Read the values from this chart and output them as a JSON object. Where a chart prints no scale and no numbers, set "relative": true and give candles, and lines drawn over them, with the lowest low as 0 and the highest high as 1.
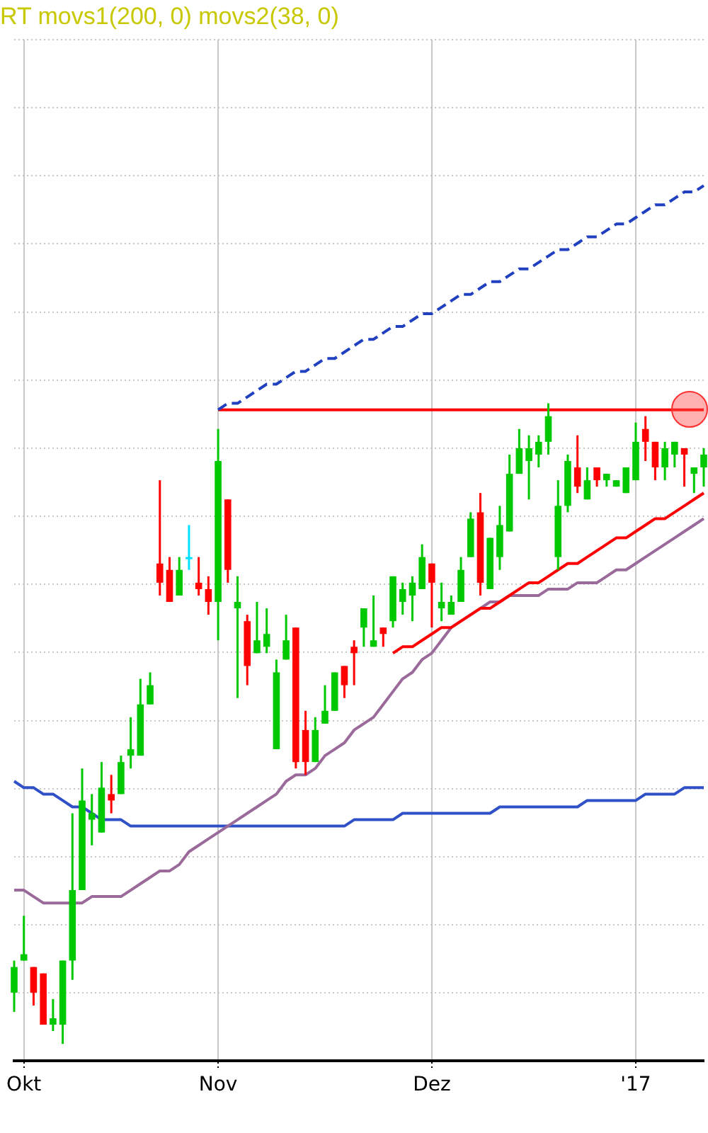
{
  "chart_data": {
    "type": "candlestick",
    "title": "RT movs1(200, 0) movs2(38, 0)",
    "relative": true,
    "grid": true,
    "legend": false,
    "marker": "none",
    "categories": [
      null,
      "Okt",
      null,
      null,
      null,
      null,
      null,
      null,
      null,
      null,
      null,
      null,
      null,
      null,
      null,
      null,
      null,
      null,
      null,
      null,
      null,
      "Nov",
      null,
      null,
      null,
      null,
      null,
      null,
      null,
      null,
      null,
      null,
      null,
      null,
      null,
      null,
      null,
      null,
      null,
      null,
      null,
      null,
      null,
      "Dez",
      null,
      null,
      null,
      null,
      null,
      null,
      null,
      null,
      null,
      null,
      null,
      null,
      null,
      null,
      null,
      null,
      null,
      null,
      null,
      null,
      "'17",
      null,
      null,
      null,
      null,
      null,
      null,
      null
    ],
    "ohlc": [
      [
        0.08,
        0.13,
        0.05,
        0.12
      ],
      [
        0.13,
        0.2,
        0.13,
        0.14
      ],
      [
        0.12,
        0.12,
        0.06,
        0.08
      ],
      [
        0.11,
        0.11,
        0.03,
        0.03
      ],
      [
        0.03,
        0.07,
        0.02,
        0.04
      ],
      [
        0.03,
        0.13,
        0,
        0.13
      ],
      [
        0.13,
        0.36,
        0.1,
        0.24
      ],
      [
        0.24,
        0.43,
        0.24,
        0.38
      ],
      [
        0.35,
        0.39,
        0.31,
        0.36
      ],
      [
        0.33,
        0.44,
        0.33,
        0.4
      ],
      [
        0.39,
        0.42,
        0.36,
        0.38
      ],
      [
        0.39,
        0.45,
        0.39,
        0.44
      ],
      [
        0.45,
        0.51,
        0.43,
        0.46
      ],
      [
        0.45,
        0.57,
        0.45,
        0.53
      ],
      [
        0.53,
        0.58,
        0.53,
        0.56
      ],
      [
        0.75,
        0.88,
        0.7,
        0.72
      ],
      [
        0.74,
        0.76,
        0.69,
        0.69
      ],
      [
        0.7,
        0.76,
        0.7,
        0.74
      ],
      [
        0.76,
        0.81,
        0.74,
        0.76
      ],
      [
        0.72,
        0.76,
        0.7,
        0.71
      ],
      [
        0.71,
        0.73,
        0.67,
        0.69
      ],
      [
        0.69,
        0.96,
        0.63,
        0.91
      ],
      [
        0.85,
        0.85,
        0.72,
        0.74
      ],
      [
        0.68,
        0.73,
        0.54,
        0.69
      ],
      [
        0.66,
        0.67,
        0.56,
        0.59
      ],
      [
        0.61,
        0.69,
        0.61,
        0.63
      ],
      [
        0.62,
        0.68,
        0.61,
        0.64
      ],
      [
        0.46,
        0.6,
        0.46,
        0.58
      ],
      [
        0.6,
        0.67,
        0.6,
        0.63
      ],
      [
        0.65,
        0.65,
        0.43,
        0.44
      ],
      [
        0.49,
        0.52,
        0.42,
        0.44
      ],
      [
        0.44,
        0.51,
        0.44,
        0.49
      ],
      [
        0.5,
        0.56,
        0.5,
        0.52
      ],
      [
        0.52,
        0.58,
        0.52,
        0.58
      ],
      [
        0.59,
        0.59,
        0.54,
        0.56
      ],
      [
        0.62,
        0.63,
        0.56,
        0.61
      ],
      [
        0.65,
        0.68,
        0.62,
        0.68
      ],
      [
        0.62,
        0.7,
        0.62,
        0.63
      ],
      [
        0.65,
        0.65,
        0.62,
        0.64
      ],
      [
        0.66,
        0.73,
        0.65,
        0.73
      ],
      [
        0.69,
        0.72,
        0.67,
        0.71
      ],
      [
        0.7,
        0.73,
        0.66,
        0.72
      ],
      [
        0.71,
        0.78,
        0.71,
        0.76
      ],
      [
        0.75,
        0.75,
        0.65,
        0.72
      ],
      [
        0.68,
        0.72,
        0.66,
        0.69
      ],
      [
        0.67,
        0.7,
        0.67,
        0.69
      ],
      [
        0.69,
        0.76,
        0.69,
        0.74
      ],
      [
        0.76,
        0.83,
        0.76,
        0.82
      ],
      [
        0.83,
        0.86,
        0.7,
        0.72
      ],
      [
        0.71,
        0.79,
        0.71,
        0.79
      ],
      [
        0.76,
        0.84,
        0.74,
        0.81
      ],
      [
        0.8,
        0.92,
        0.8,
        0.89
      ],
      [
        0.89,
        0.96,
        0.89,
        0.93
      ],
      [
        0.91,
        0.95,
        0.85,
        0.93
      ],
      [
        0.92,
        0.95,
        0.9,
        0.94
      ],
      [
        0.94,
        1,
        0.92,
        0.98
      ],
      [
        0.76,
        0.88,
        0.74,
        0.84
      ],
      [
        0.84,
        0.92,
        0.83,
        0.91
      ],
      [
        0.9,
        0.95,
        0.86,
        0.87
      ],
      [
        0.85,
        0.9,
        0.85,
        0.88
      ],
      [
        0.9,
        0.9,
        0.87,
        0.88
      ],
      [
        0.88,
        0.89,
        0.87,
        0.89
      ],
      [
        0.87,
        0.88,
        0.87,
        0.88
      ],
      [
        0.86,
        0.9,
        0.86,
        0.9
      ],
      [
        0.88,
        0.97,
        0.88,
        0.94
      ],
      [
        0.96,
        0.98,
        0.91,
        0.94
      ],
      [
        0.94,
        0.94,
        0.88,
        0.9
      ],
      [
        0.9,
        0.94,
        0.88,
        0.93
      ],
      [
        0.92,
        0.94,
        0.9,
        0.94
      ],
      [
        0.93,
        0.93,
        0.87,
        0.92
      ],
      [
        0.89,
        0.9,
        0.86,
        0.9
      ],
      [
        0.9,
        0.93,
        0.87,
        0.92
      ]
    ],
    "colors": [
      "#00c800",
      "#00c800",
      "#ff0000",
      "#ff0000",
      "#00c800",
      "#00c800",
      "#00c800",
      "#00c800",
      "#00c800",
      "#00c800",
      "#ff0000",
      "#00c800",
      "#00c800",
      "#00c800",
      "#00c800",
      "#ff0000",
      "#ff0000",
      "#00c800",
      "#00e0ff",
      "#ff0000",
      "#ff0000",
      "#00c800",
      "#ff0000",
      "#00c800",
      "#ff0000",
      "#00c800",
      "#00c800",
      "#00c800",
      "#00c800",
      "#ff0000",
      "#ff0000",
      "#00c800",
      "#00c800",
      "#00c800",
      "#ff0000",
      "#ff0000",
      "#00c800",
      "#00c800",
      "#ff0000",
      "#00c800",
      "#00c800",
      "#00c800",
      "#00c800",
      "#ff0000",
      "#00c800",
      "#00c800",
      "#00c800",
      "#00c800",
      "#ff0000",
      "#00c800",
      "#00c800",
      "#00c800",
      "#00c800",
      "#00c800",
      "#00c800",
      "#00c800",
      "#00c800",
      "#00c800",
      "#ff0000",
      "#00c800",
      "#ff0000",
      "#00c800",
      "#00c800",
      "#00c800",
      "#00c800",
      "#ff0000",
      "#ff0000",
      "#00c800",
      "#00c800",
      "#ff0000",
      "#00c800",
      "#00c800"
    ],
    "series": [
      {
        "type": "line",
        "color": "#3050c8",
        "values": [
          0.41,
          0.4,
          0.4,
          0.39,
          0.39,
          0.38,
          0.37,
          0.37,
          0.36,
          0.35,
          0.35,
          0.35,
          0.34,
          0.34,
          0.34,
          0.34,
          0.34,
          0.34,
          0.34,
          0.34,
          0.34,
          0.34,
          0.34,
          0.34,
          0.34,
          0.34,
          0.34,
          0.34,
          0.34,
          0.34,
          0.34,
          0.34,
          0.34,
          0.34,
          0.34,
          0.35,
          0.35,
          0.35,
          0.35,
          0.35,
          0.36,
          0.36,
          0.36,
          0.36,
          0.36,
          0.36,
          0.36,
          0.36,
          0.36,
          0.36,
          0.37,
          0.37,
          0.37,
          0.37,
          0.37,
          0.37,
          0.37,
          0.37,
          0.37,
          0.38,
          0.38,
          0.38,
          0.38,
          0.38,
          0.38,
          0.39,
          0.39,
          0.39,
          0.39,
          0.4,
          0.4,
          0.4
        ]
      },
      {
        "type": "line",
        "color": "#9a6a9a",
        "values": [
          0.24,
          0.24,
          0.23,
          0.22,
          0.22,
          0.22,
          0.22,
          0.22,
          0.23,
          0.23,
          0.23,
          0.23,
          0.24,
          0.25,
          0.26,
          0.27,
          0.27,
          0.28,
          0.3,
          0.31,
          0.32,
          0.33,
          0.34,
          0.35,
          0.36,
          0.37,
          0.38,
          0.39,
          0.41,
          0.42,
          0.42,
          0.43,
          0.45,
          0.46,
          0.47,
          0.49,
          0.5,
          0.51,
          0.53,
          0.55,
          0.57,
          0.58,
          0.6,
          0.61,
          0.63,
          0.65,
          0.66,
          0.67,
          0.68,
          0.69,
          0.69,
          0.7,
          0.7,
          0.7,
          0.7,
          0.71,
          0.71,
          0.71,
          0.72,
          0.72,
          0.72,
          0.73,
          0.74,
          0.74,
          0.75,
          0.76,
          0.77,
          0.78,
          0.79,
          0.8,
          0.81,
          0.82
        ]
      },
      {
        "type": "line",
        "color": "#ff0000",
        "values": [
          null,
          null,
          null,
          null,
          null,
          null,
          null,
          null,
          null,
          null,
          null,
          null,
          null,
          null,
          null,
          null,
          null,
          null,
          null,
          null,
          null,
          0.99,
          0.99,
          0.99,
          0.99,
          0.99,
          0.99,
          0.99,
          0.99,
          0.99,
          0.99,
          0.99,
          0.99,
          0.99,
          0.99,
          0.99,
          0.99,
          0.99,
          0.99,
          0.99,
          0.99,
          0.99,
          0.99,
          0.99,
          0.99,
          0.99,
          0.99,
          0.99,
          0.99,
          0.99,
          0.99,
          0.99,
          0.99,
          0.99,
          0.99,
          0.99,
          0.99,
          0.99,
          0.99,
          0.99,
          0.99,
          0.99,
          0.99,
          0.99,
          0.99,
          0.99,
          0.99,
          0.99,
          0.99,
          0.99,
          0.99,
          0.99
        ]
      },
      {
        "type": "line",
        "color": "#ff0000",
        "values": [
          null,
          null,
          null,
          null,
          null,
          null,
          null,
          null,
          null,
          null,
          null,
          null,
          null,
          null,
          null,
          null,
          null,
          null,
          null,
          null,
          null,
          null,
          null,
          null,
          null,
          null,
          null,
          null,
          null,
          null,
          null,
          null,
          null,
          null,
          null,
          null,
          null,
          null,
          null,
          0.61,
          0.62,
          0.62,
          0.63,
          0.64,
          0.65,
          0.65,
          0.66,
          0.67,
          0.68,
          0.68,
          0.69,
          0.7,
          0.71,
          0.72,
          0.72,
          0.73,
          0.74,
          0.75,
          0.75,
          0.76,
          0.77,
          0.78,
          0.79,
          0.79,
          0.8,
          0.81,
          0.82,
          0.82,
          0.83,
          0.84,
          0.85,
          0.86
        ]
      },
      {
        "type": "line",
        "color": "#2040c0",
        "line_style": "dashed",
        "values": [
          null,
          null,
          null,
          null,
          null,
          null,
          null,
          null,
          null,
          null,
          null,
          null,
          null,
          null,
          null,
          null,
          null,
          null,
          null,
          null,
          null,
          0.99,
          1,
          1,
          1.01,
          1.02,
          1.03,
          1.03,
          1.04,
          1.05,
          1.05,
          1.06,
          1.07,
          1.07,
          1.08,
          1.09,
          1.1,
          1.1,
          1.11,
          1.12,
          1.12,
          1.13,
          1.14,
          1.14,
          1.15,
          1.16,
          1.17,
          1.17,
          1.18,
          1.19,
          1.19,
          1.2,
          1.21,
          1.21,
          1.22,
          1.23,
          1.24,
          1.24,
          1.25,
          1.26,
          1.26,
          1.27,
          1.28,
          1.28,
          1.29,
          1.3,
          1.31,
          1.31,
          1.32,
          1.33,
          1.33,
          1.34
        ]
      }
    ]
  }
}
